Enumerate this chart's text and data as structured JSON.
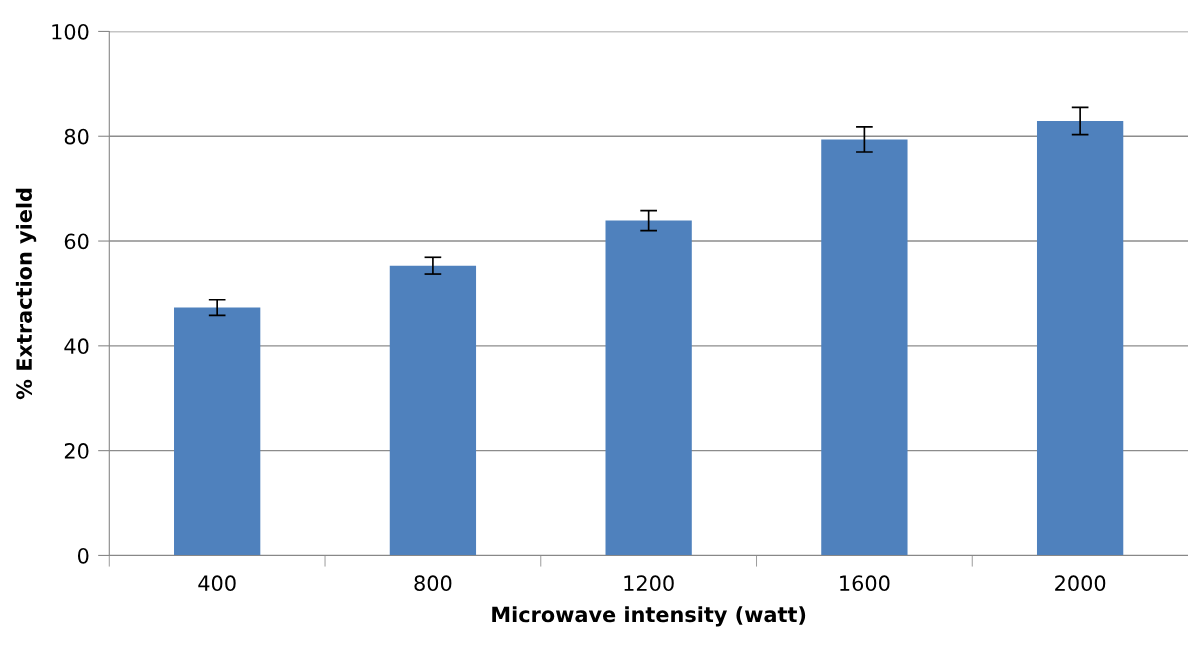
{
  "chart_data": {
    "type": "bar",
    "xlabel": "Microwave intensity (watt)",
    "ylabel": "% Extraction yield",
    "categories": [
      "400",
      "800",
      "1200",
      "1600",
      "2000"
    ],
    "values": [
      47.3,
      55.3,
      63.9,
      79.4,
      82.9
    ],
    "errors": [
      1.5,
      1.6,
      1.9,
      2.4,
      2.6
    ],
    "color": "#4f81bd",
    "ylim": [
      0,
      100
    ],
    "yticks": [
      0,
      20,
      40,
      60,
      80,
      100
    ],
    "grid": "y"
  }
}
